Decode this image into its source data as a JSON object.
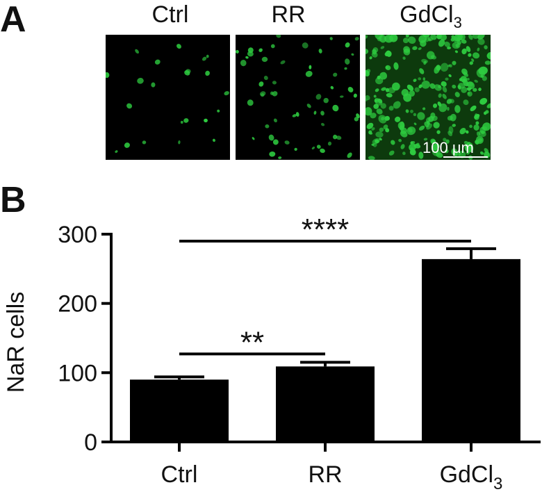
{
  "panel_a": {
    "letter": "A",
    "images": [
      {
        "title": "Ctrl",
        "density": "low"
      },
      {
        "title": "RR",
        "density": "medium"
      },
      {
        "title_main": "GdCl",
        "title_sub": "3",
        "density": "high"
      }
    ],
    "scale_bar_label": "100 μm",
    "cell_color": "#2ecc40"
  },
  "panel_b": {
    "letter": "B"
  },
  "chart_data": {
    "type": "bar",
    "categories": [
      "Ctrl",
      "RR",
      "GdCl3"
    ],
    "category_labels": [
      {
        "main": "Ctrl",
        "sub": ""
      },
      {
        "main": "RR",
        "sub": ""
      },
      {
        "main": "GdCl",
        "sub": "3"
      }
    ],
    "values": [
      90,
      109,
      264
    ],
    "errors": [
      4,
      6,
      15
    ],
    "ylabel": "NaR cells",
    "ylim": [
      0,
      300
    ],
    "yticks": [
      0,
      100,
      200,
      300
    ],
    "bar_color": "#000000",
    "significance": [
      {
        "from": 0,
        "to": 1,
        "label": "**",
        "y": 127
      },
      {
        "from": 0,
        "to": 2,
        "label": "****",
        "y": 290
      }
    ],
    "grid": false,
    "legend": "none"
  }
}
